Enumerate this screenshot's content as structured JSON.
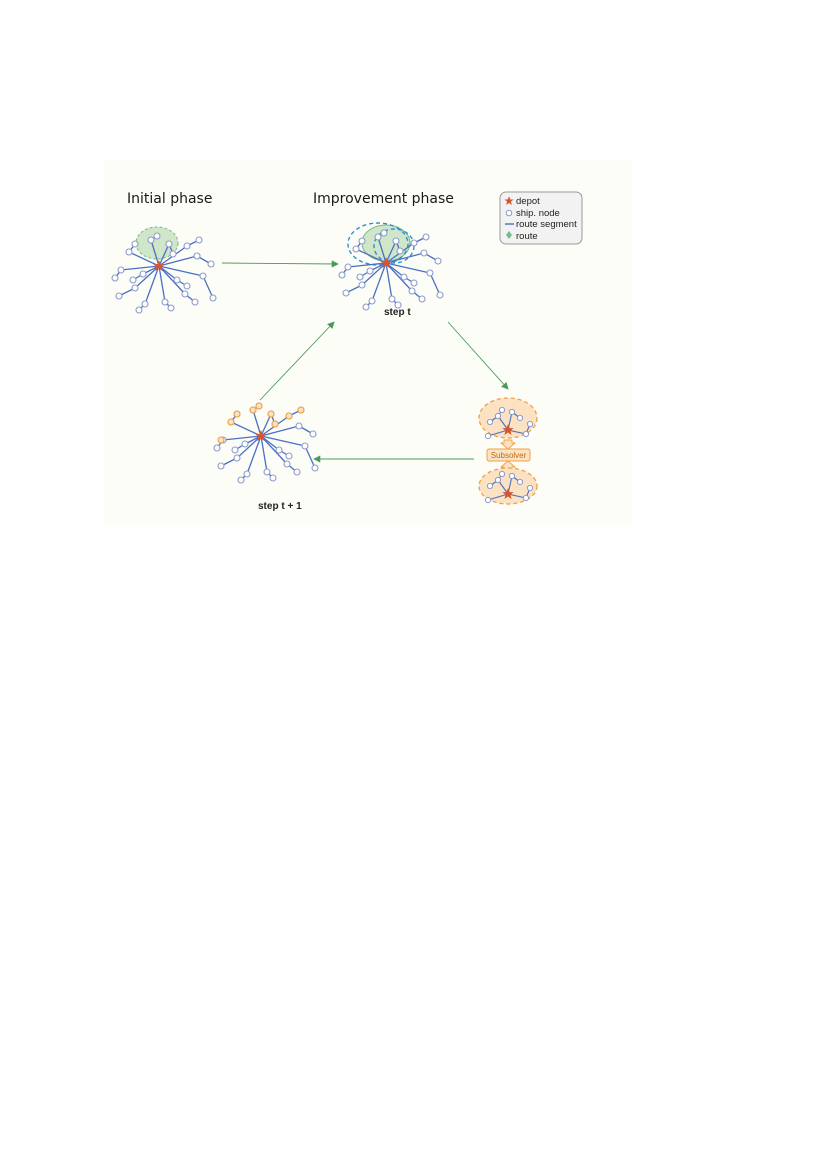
{
  "titles": {
    "initial": "Initial phase",
    "improvement": "Improvement phase"
  },
  "steps": {
    "t": "step t",
    "t_plus_1": "step t + 1"
  },
  "subsolver": "Subsolver",
  "legend": {
    "depot": "depot",
    "node": "ship. node",
    "segment": "route segment",
    "route": "route"
  },
  "colors": {
    "depot": "#d9542b",
    "node": "#8c9bc9",
    "segment": "#4a6fc4",
    "route_fill": "#cfe6c8",
    "dashed_blue": "#2d8fd5",
    "orange": "#f0a040",
    "orange_fill": "#fbe2c2",
    "arrow": "#4c9a5a"
  }
}
